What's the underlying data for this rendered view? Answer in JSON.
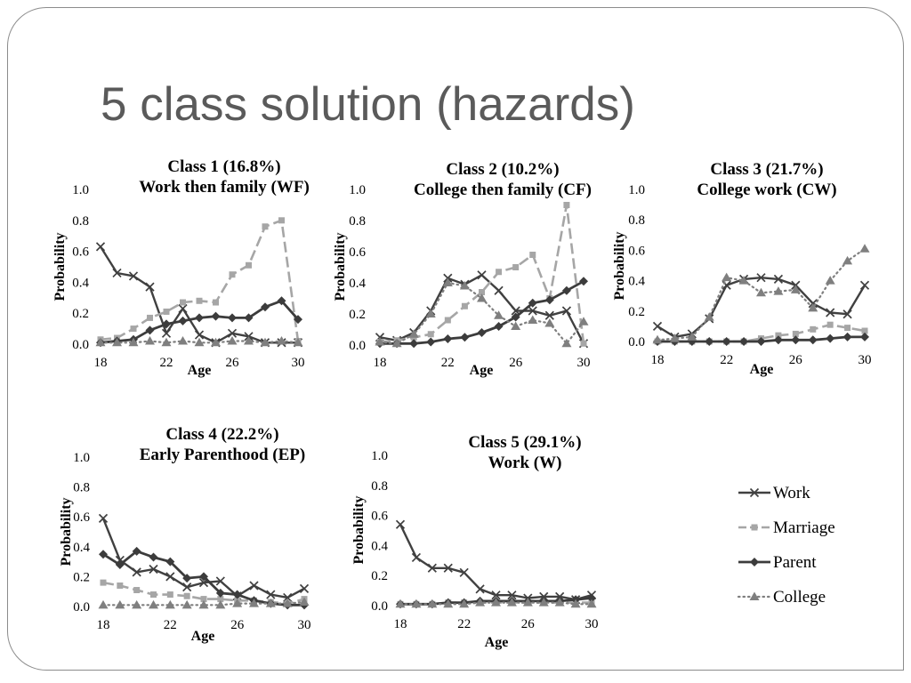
{
  "slide": {
    "title": "5 class solution (hazards)"
  },
  "legend": {
    "placement": "bottom-right",
    "items": [
      {
        "label": "Work",
        "color": "#404040"
      },
      {
        "label": "Marriage",
        "color": "#a6a6a6"
      },
      {
        "label": "Parent",
        "color": "#3c3c3c"
      },
      {
        "label": "College",
        "color": "#7f7f7f"
      }
    ]
  },
  "chart_data": [
    {
      "type": "line",
      "title": "Class 1 (16.8%)",
      "subtitle": "Work then family (WF)",
      "xlabel": "Age",
      "ylabel": "Probability",
      "x": [
        18,
        19,
        20,
        21,
        22,
        23,
        24,
        25,
        26,
        27,
        28,
        29,
        30
      ],
      "xlim": [
        18,
        30
      ],
      "ylim": [
        0,
        1
      ],
      "xticks": [
        "18",
        "22",
        "26",
        "30"
      ],
      "yticks": [
        "0.0",
        "0.2",
        "0.4",
        "0.6",
        "0.8",
        "1.0"
      ],
      "grid": false,
      "series": [
        {
          "name": "Work",
          "values": [
            0.63,
            0.46,
            0.44,
            0.37,
            0.07,
            0.23,
            0.06,
            0.01,
            0.07,
            0.05,
            0.01,
            0.01,
            0.01
          ]
        },
        {
          "name": "Marriage",
          "values": [
            0.03,
            0.04,
            0.1,
            0.17,
            0.21,
            0.27,
            0.28,
            0.27,
            0.45,
            0.51,
            0.76,
            0.8,
            0.02
          ]
        },
        {
          "name": "Parent",
          "values": [
            0.01,
            0.02,
            0.03,
            0.09,
            0.13,
            0.15,
            0.17,
            0.18,
            0.17,
            0.17,
            0.24,
            0.28,
            0.16
          ]
        },
        {
          "name": "College",
          "values": [
            0.01,
            0.01,
            0.01,
            0.02,
            0.01,
            0.02,
            0.01,
            0.01,
            0.02,
            0.02,
            0.01,
            0.02,
            0.01
          ]
        }
      ]
    },
    {
      "type": "line",
      "title": "Class 2 (10.2%)",
      "subtitle": "College then family (CF)",
      "xlabel": "Age",
      "ylabel": "Probability",
      "x": [
        18,
        19,
        20,
        21,
        22,
        23,
        24,
        25,
        26,
        27,
        28,
        29,
        30
      ],
      "xlim": [
        18,
        30
      ],
      "ylim": [
        0,
        1
      ],
      "xticks": [
        "18",
        "22",
        "26",
        "30"
      ],
      "yticks": [
        "0.0",
        "0.2",
        "0.4",
        "0.6",
        "0.8",
        "1.0"
      ],
      "grid": false,
      "series": [
        {
          "name": "Work",
          "values": [
            0.05,
            0.03,
            0.08,
            0.22,
            0.43,
            0.39,
            0.45,
            0.35,
            0.22,
            0.22,
            0.19,
            0.22,
            0.01
          ]
        },
        {
          "name": "Marriage",
          "values": [
            0.02,
            0.03,
            0.05,
            0.07,
            0.16,
            0.25,
            0.34,
            0.47,
            0.5,
            0.58,
            0.3,
            0.9,
            0.01
          ]
        },
        {
          "name": "Parent",
          "values": [
            0.01,
            0.01,
            0.01,
            0.02,
            0.04,
            0.05,
            0.08,
            0.12,
            0.18,
            0.27,
            0.29,
            0.35,
            0.41
          ]
        },
        {
          "name": "College",
          "values": [
            0.02,
            0.01,
            0.07,
            0.2,
            0.4,
            0.38,
            0.3,
            0.19,
            0.12,
            0.16,
            0.14,
            0.01,
            0.15
          ]
        }
      ]
    },
    {
      "type": "line",
      "title": "Class 3 (21.7%)",
      "subtitle": "College work (CW)",
      "xlabel": "Age",
      "ylabel": "Probability",
      "x": [
        18,
        19,
        20,
        21,
        22,
        23,
        24,
        25,
        26,
        27,
        28,
        29,
        30
      ],
      "xlim": [
        18,
        30
      ],
      "ylim": [
        0,
        1
      ],
      "xticks": [
        "18",
        "22",
        "26",
        "30"
      ],
      "yticks": [
        "0.0",
        "0.2",
        "0.4",
        "0.6",
        "0.8",
        "1.0"
      ],
      "grid": false,
      "series": [
        {
          "name": "Work",
          "values": [
            0.1,
            0.03,
            0.05,
            0.15,
            0.37,
            0.41,
            0.42,
            0.41,
            0.37,
            0.25,
            0.19,
            0.18,
            0.37
          ]
        },
        {
          "name": "Marriage",
          "values": [
            0.0,
            0.0,
            0.0,
            0.0,
            0.0,
            0.0,
            0.02,
            0.04,
            0.05,
            0.08,
            0.11,
            0.09,
            0.07
          ]
        },
        {
          "name": "Parent",
          "values": [
            0.0,
            0.0,
            0.0,
            0.0,
            0.0,
            0.0,
            0.0,
            0.01,
            0.01,
            0.01,
            0.02,
            0.03,
            0.03
          ]
        },
        {
          "name": "College",
          "values": [
            0.01,
            0.02,
            0.03,
            0.16,
            0.42,
            0.4,
            0.32,
            0.33,
            0.34,
            0.22,
            0.4,
            0.53,
            0.61
          ]
        }
      ]
    },
    {
      "type": "line",
      "title": "Class 4 (22.2%)",
      "subtitle": "Early Parenthood (EP)",
      "xlabel": "Age",
      "ylabel": "Probability",
      "x": [
        18,
        19,
        20,
        21,
        22,
        23,
        24,
        25,
        26,
        27,
        28,
        29,
        30
      ],
      "xlim": [
        18,
        30
      ],
      "ylim": [
        0,
        1
      ],
      "xticks": [
        "18",
        "22",
        "26",
        "30"
      ],
      "yticks": [
        "0.0",
        "0.2",
        "0.4",
        "0.6",
        "0.8",
        "1.0"
      ],
      "grid": false,
      "series": [
        {
          "name": "Work",
          "values": [
            0.59,
            0.31,
            0.23,
            0.25,
            0.2,
            0.13,
            0.16,
            0.17,
            0.07,
            0.14,
            0.08,
            0.06,
            0.12
          ]
        },
        {
          "name": "Marriage",
          "values": [
            0.16,
            0.14,
            0.11,
            0.08,
            0.08,
            0.07,
            0.05,
            0.05,
            0.04,
            0.04,
            0.03,
            0.02,
            0.05
          ]
        },
        {
          "name": "Parent",
          "values": [
            0.35,
            0.28,
            0.37,
            0.33,
            0.3,
            0.19,
            0.2,
            0.09,
            0.08,
            0.04,
            0.02,
            0.01,
            0.01
          ]
        },
        {
          "name": "College",
          "values": [
            0.01,
            0.01,
            0.01,
            0.01,
            0.01,
            0.01,
            0.01,
            0.01,
            0.02,
            0.02,
            0.02,
            0.02,
            0.03
          ]
        }
      ]
    },
    {
      "type": "line",
      "title": "Class 5 (29.1%)",
      "subtitle": "Work (W)",
      "xlabel": "Age",
      "ylabel": "Probability",
      "x": [
        18,
        19,
        20,
        21,
        22,
        23,
        24,
        25,
        26,
        27,
        28,
        29,
        30
      ],
      "xlim": [
        18,
        30
      ],
      "ylim": [
        0,
        1
      ],
      "xticks": [
        "18",
        "22",
        "26",
        "30"
      ],
      "yticks": [
        "0.0",
        "0.2",
        "0.4",
        "0.6",
        "0.8",
        "1.0"
      ],
      "grid": false,
      "series": [
        {
          "name": "Work",
          "values": [
            0.54,
            0.32,
            0.25,
            0.25,
            0.22,
            0.11,
            0.07,
            0.07,
            0.05,
            0.06,
            0.06,
            0.04,
            0.07
          ]
        },
        {
          "name": "Marriage",
          "values": [
            0.01,
            0.01,
            0.01,
            0.02,
            0.02,
            0.02,
            0.02,
            0.02,
            0.02,
            0.02,
            0.02,
            0.02,
            0.02
          ]
        },
        {
          "name": "Parent",
          "values": [
            0.01,
            0.01,
            0.01,
            0.02,
            0.02,
            0.03,
            0.03,
            0.03,
            0.03,
            0.03,
            0.03,
            0.04,
            0.05
          ]
        },
        {
          "name": "College",
          "values": [
            0.01,
            0.01,
            0.01,
            0.01,
            0.01,
            0.02,
            0.02,
            0.02,
            0.02,
            0.02,
            0.02,
            0.01,
            0.01
          ]
        }
      ]
    }
  ]
}
